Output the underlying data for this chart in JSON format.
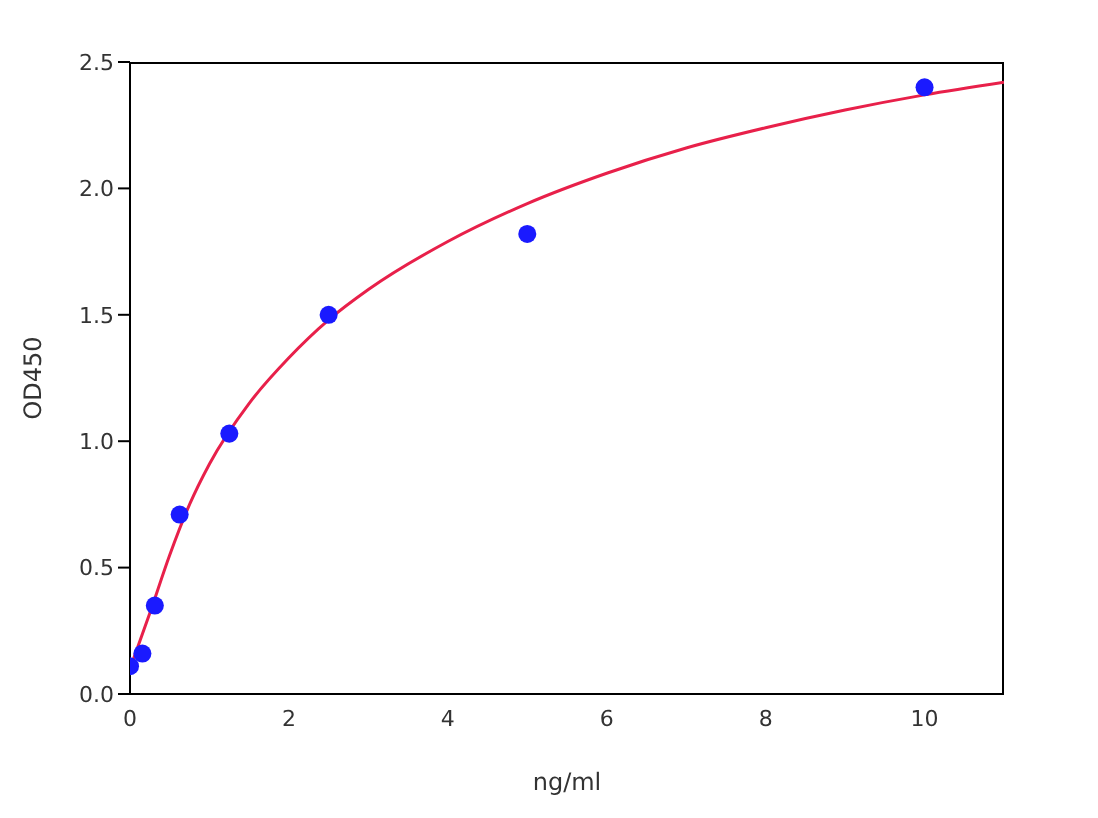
{
  "chart_data": {
    "type": "scatter",
    "xlabel": "ng/ml",
    "ylabel": "OD450",
    "xlim": [
      0,
      11
    ],
    "xticks": [
      0,
      2,
      4,
      6,
      8,
      10
    ],
    "ylim": [
      0,
      2.5
    ],
    "yticks": [
      {
        "value": 0,
        "label": "0.0"
      },
      {
        "value": 0.5,
        "label": "0.5"
      },
      {
        "value": 1,
        "label": "1.0"
      },
      {
        "value": 1.5,
        "label": "1.5"
      },
      {
        "value": 2,
        "label": "2.0"
      },
      {
        "value": 2.5,
        "label": "2.5"
      }
    ],
    "grid": false,
    "legend": false,
    "series": [
      {
        "type": "scatter",
        "color": "#1a1aff",
        "marker": "circle",
        "x": [
          0,
          0.156,
          0.3125,
          0.625,
          1.25,
          2.5,
          5,
          10
        ],
        "values": [
          0.11,
          0.16,
          0.35,
          0.71,
          1.03,
          1.5,
          1.82,
          2.4
        ]
      },
      {
        "type": "line",
        "color": "#e8204a",
        "marker": "none",
        "line_style": "solid",
        "x": [
          0,
          0.25,
          0.5,
          0.75,
          1,
          1.5,
          2,
          2.5,
          3,
          4,
          5,
          6,
          7,
          8,
          9,
          10,
          11
        ],
        "values": [
          0.1,
          0.32,
          0.55,
          0.75,
          0.91,
          1.15,
          1.33,
          1.48,
          1.6,
          1.79,
          1.94,
          2.06,
          2.16,
          2.24,
          2.31,
          2.37,
          2.42
        ]
      }
    ]
  }
}
